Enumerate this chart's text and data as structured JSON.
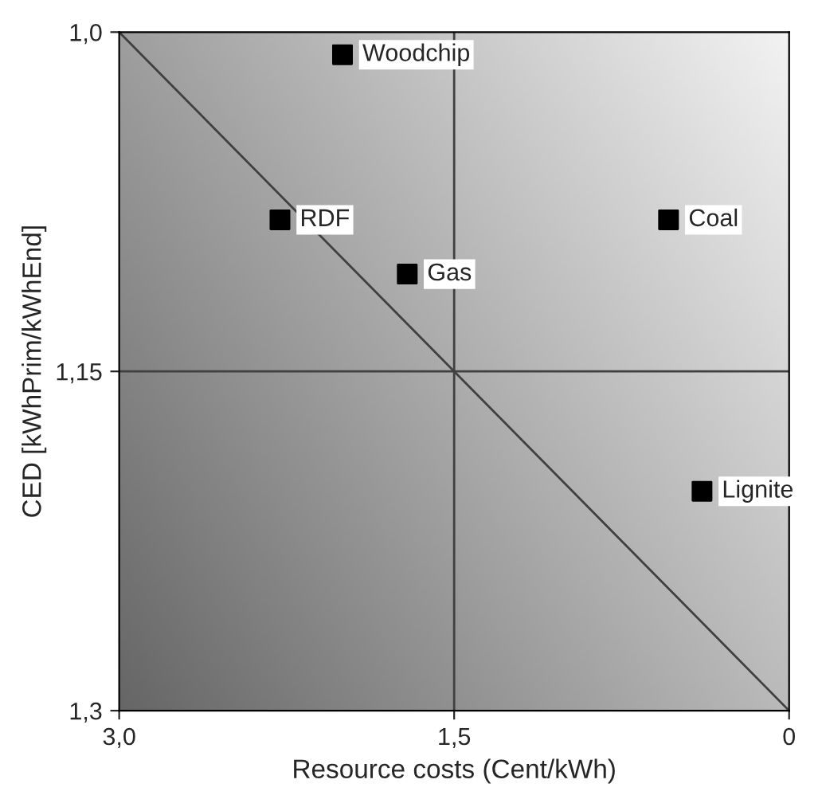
{
  "chart_data": {
    "type": "scatter",
    "xlabel": "Resource costs (Cent/kWh)",
    "ylabel": "CED [kWhPrim/kWhEnd]",
    "x": [
      2.0,
      2.28,
      1.71,
      0.54,
      0.39
    ],
    "series": [
      {
        "color": "#000000",
        "values": [
          1.01,
          1.083,
          1.107,
          1.083,
          1.203
        ],
        "marker": "square"
      },
      {
        "type": "line",
        "color": "#404040",
        "x": [
          3.0,
          0.0
        ],
        "values": [
          1.0,
          1.3
        ],
        "marker": "none"
      }
    ],
    "annotations": [
      {
        "text": "Woodchip",
        "x": 2.0,
        "y": 1.01
      },
      {
        "text": "RDF",
        "x": 2.28,
        "y": 1.083
      },
      {
        "text": "Gas",
        "x": 1.71,
        "y": 1.107
      },
      {
        "text": "Coal",
        "x": 0.54,
        "y": 1.083
      },
      {
        "text": "Lignite",
        "x": 0.39,
        "y": 1.203
      }
    ],
    "ref_lines": [
      {
        "axis": "x",
        "value": 1.5,
        "color": "#404040"
      },
      {
        "axis": "y",
        "value": 1.15,
        "color": "#404040"
      }
    ],
    "xlim": [
      3.0,
      0.0
    ],
    "ylim": [
      1.3,
      1.0
    ],
    "xticks": [
      {
        "value": 3.0,
        "label": "3,0"
      },
      {
        "value": 1.5,
        "label": "1,5"
      },
      0
    ],
    "yticks": [
      {
        "value": 1.3,
        "label": "1,3"
      },
      {
        "value": 1.15,
        "label": "1,15"
      },
      {
        "value": 1.0,
        "label": "1,0"
      }
    ],
    "grid": false,
    "legend": false
  }
}
